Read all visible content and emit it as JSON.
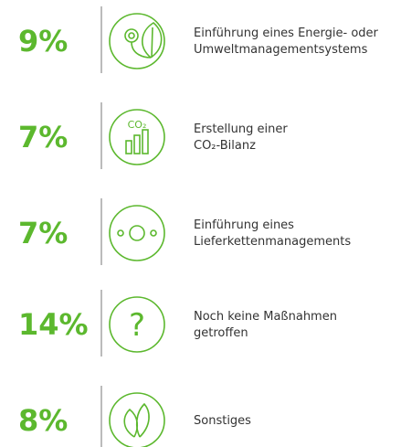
{
  "items": [
    {
      "percent": "9%",
      "lines": [
        "Einführung eines Energie- oder",
        "Umweltmanagementsystems"
      ]
    },
    {
      "percent": "7%",
      "icon_text": "CO₂",
      "lines": [
        "Erstellung einer",
        "CO₂-Bilanz"
      ]
    },
    {
      "percent": "7%",
      "lines": [
        "Einführung eines",
        "Lieferkettenmanagements"
      ]
    },
    {
      "percent": "14%",
      "icon_text": "?",
      "lines": [
        "Noch keine Maßnahmen",
        "getroffen"
      ]
    },
    {
      "percent": "8%",
      "lines": [
        "Sonstiges"
      ]
    }
  ]
}
